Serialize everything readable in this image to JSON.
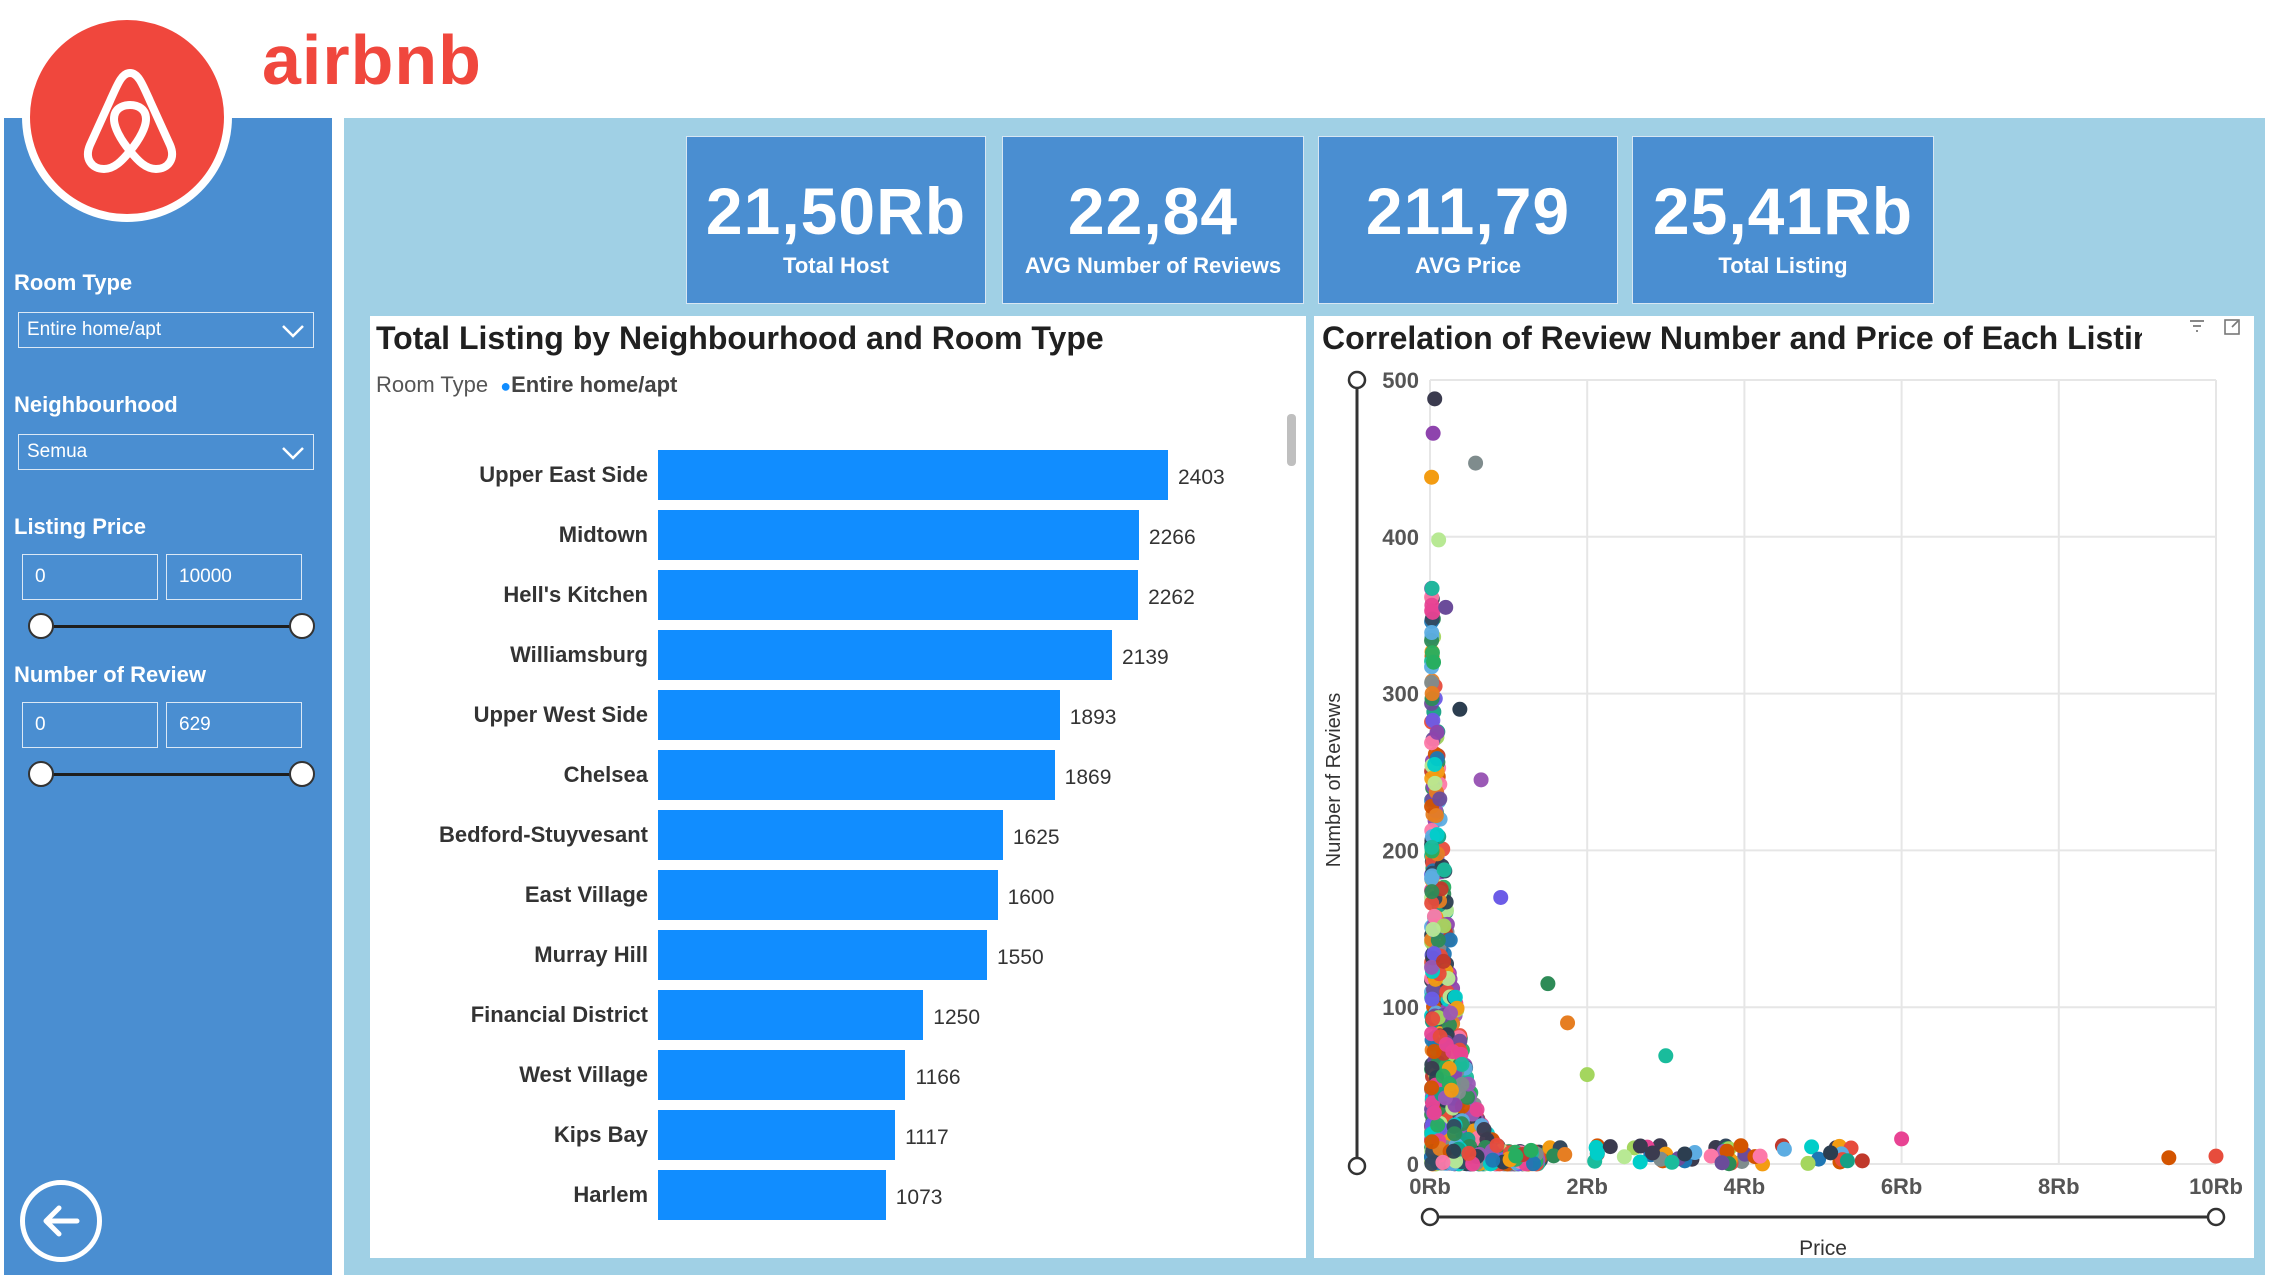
{
  "header": {
    "brand": "airbnb"
  },
  "sidebar": {
    "room_type": {
      "label": "Room Type",
      "value": "Entire home/apt"
    },
    "neighbourhood": {
      "label": "Neighbourhood",
      "value": "Semua"
    },
    "listing_price": {
      "label": "Listing Price",
      "min": "0",
      "max": "10000"
    },
    "number_of_review": {
      "label": "Number of Review",
      "min": "0",
      "max": "629"
    }
  },
  "kpis": [
    {
      "value": "21,50Rb",
      "label": "Total Host"
    },
    {
      "value": "22,84",
      "label": "AVG Number of Reviews"
    },
    {
      "value": "211,79",
      "label": "AVG Price"
    },
    {
      "value": "25,41Rb",
      "label": "Total Listing"
    }
  ],
  "colors": {
    "brand": "#f0473d",
    "sidebar": "#4a8ed1",
    "canvas": "#a0d0e5",
    "bar": "#118dff"
  },
  "chart_data": [
    {
      "type": "bar",
      "title": "Total Listing by Neighbourhood and Room Type",
      "legend": {
        "title": "Room Type",
        "entries": [
          "Entire home/apt"
        ]
      },
      "categories": [
        "Upper East Side",
        "Midtown",
        "Hell's Kitchen",
        "Williamsburg",
        "Upper West Side",
        "Chelsea",
        "Bedford-Stuyvesant",
        "East Village",
        "Murray Hill",
        "Financial District",
        "West Village",
        "Kips Bay",
        "Harlem"
      ],
      "values": [
        2403,
        2266,
        2262,
        2139,
        1893,
        1869,
        1625,
        1600,
        1550,
        1250,
        1166,
        1117,
        1073
      ],
      "orientation": "horizontal"
    },
    {
      "type": "scatter",
      "title": "Correlation of Review Number and Price of Each Listing",
      "xlabel": "Price",
      "ylabel": "Number of Reviews",
      "xticks": [
        "0Rb",
        "2Rb",
        "4Rb",
        "6Rb",
        "8Rb",
        "10Rb"
      ],
      "yticks": [
        "0",
        "100",
        "200",
        "300",
        "400",
        "500"
      ],
      "xlim": [
        0,
        10000
      ],
      "ylim": [
        0,
        500
      ],
      "grid": true,
      "highlight_points": [
        [
          60,
          488
        ],
        [
          40,
          466
        ],
        [
          580,
          447
        ],
        [
          20,
          438
        ],
        [
          110,
          398
        ],
        [
          200,
          355
        ],
        [
          45,
          320
        ],
        [
          380,
          290
        ],
        [
          650,
          245
        ],
        [
          900,
          170
        ],
        [
          1500,
          115
        ],
        [
          1750,
          90
        ],
        [
          2000,
          57
        ],
        [
          3000,
          69
        ],
        [
          4200,
          5
        ],
        [
          5500,
          2
        ],
        [
          6000,
          16
        ],
        [
          9400,
          4
        ],
        [
          10000,
          5
        ]
      ]
    }
  ]
}
